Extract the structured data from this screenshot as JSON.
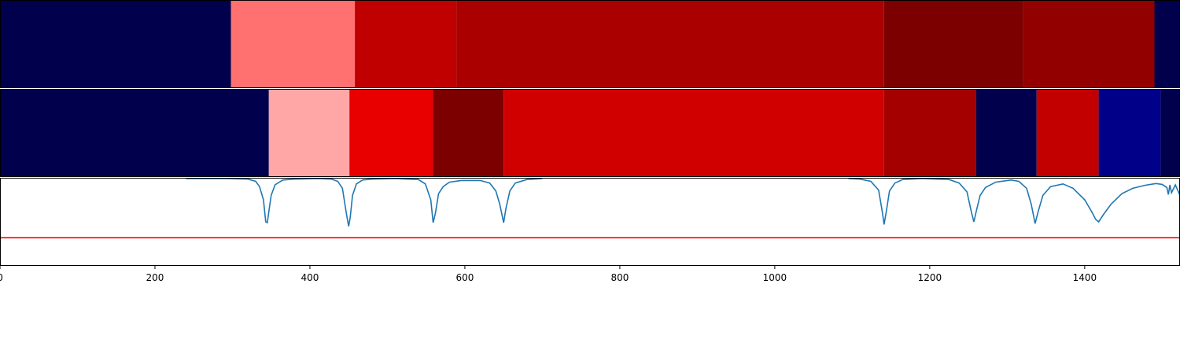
{
  "chart_data": [
    {
      "type": "heatmap",
      "segments": [
        {
          "start": 0,
          "end": 298,
          "color": "#00004c"
        },
        {
          "start": 298,
          "end": 458,
          "color": "#ff7070"
        },
        {
          "start": 458,
          "end": 589,
          "color": "#c00000"
        },
        {
          "start": 589,
          "end": 1141,
          "color": "#aa0000"
        },
        {
          "start": 1141,
          "end": 1320,
          "color": "#7c0000"
        },
        {
          "start": 1320,
          "end": 1490,
          "color": "#930000"
        },
        {
          "start": 1490,
          "end": 1523,
          "color": "#00004c"
        }
      ]
    },
    {
      "type": "heatmap",
      "segments": [
        {
          "start": 0,
          "end": 347,
          "color": "#00004c"
        },
        {
          "start": 347,
          "end": 451,
          "color": "#ffa6a6"
        },
        {
          "start": 451,
          "end": 559,
          "color": "#e80000"
        },
        {
          "start": 559,
          "end": 650,
          "color": "#7c0000"
        },
        {
          "start": 650,
          "end": 1141,
          "color": "#d00000"
        },
        {
          "start": 1141,
          "end": 1260,
          "color": "#a40000"
        },
        {
          "start": 1260,
          "end": 1338,
          "color": "#00004c"
        },
        {
          "start": 1338,
          "end": 1418,
          "color": "#c20000"
        },
        {
          "start": 1418,
          "end": 1498,
          "color": "#000088"
        },
        {
          "start": 1498,
          "end": 1523,
          "color": "#00004c"
        }
      ]
    },
    {
      "type": "line",
      "ylim": [
        0,
        1
      ],
      "series": [
        {
          "color": "#1f77b4",
          "points": [
            [
              240,
              0.99
            ],
            [
              290,
              0.99
            ],
            [
              320,
              0.985
            ],
            [
              330,
              0.96
            ],
            [
              335,
              0.9
            ],
            [
              340,
              0.75
            ],
            [
              343,
              0.5
            ],
            [
              345,
              0.49
            ],
            [
              347,
              0.62
            ],
            [
              350,
              0.8
            ],
            [
              355,
              0.92
            ],
            [
              365,
              0.975
            ],
            [
              380,
              0.985
            ],
            [
              410,
              0.99
            ],
            [
              428,
              0.985
            ],
            [
              436,
              0.96
            ],
            [
              442,
              0.88
            ],
            [
              447,
              0.6
            ],
            [
              450,
              0.45
            ],
            [
              452,
              0.55
            ],
            [
              455,
              0.8
            ],
            [
              460,
              0.93
            ],
            [
              468,
              0.975
            ],
            [
              480,
              0.985
            ],
            [
              510,
              0.99
            ],
            [
              540,
              0.98
            ],
            [
              549,
              0.93
            ],
            [
              556,
              0.75
            ],
            [
              559,
              0.49
            ],
            [
              562,
              0.6
            ],
            [
              566,
              0.82
            ],
            [
              572,
              0.9
            ],
            [
              580,
              0.95
            ],
            [
              595,
              0.97
            ],
            [
              620,
              0.97
            ],
            [
              632,
              0.94
            ],
            [
              640,
              0.85
            ],
            [
              645,
              0.7
            ],
            [
              650,
              0.49
            ],
            [
              653,
              0.65
            ],
            [
              658,
              0.85
            ],
            [
              665,
              0.94
            ],
            [
              680,
              0.98
            ],
            [
              700,
              0.99
            ]
          ]
        },
        {
          "color": "#1f77b4",
          "points": [
            [
              1095,
              0.99
            ],
            [
              1110,
              0.985
            ],
            [
              1124,
              0.96
            ],
            [
              1134,
              0.86
            ],
            [
              1139,
              0.6
            ],
            [
              1141,
              0.47
            ],
            [
              1144,
              0.62
            ],
            [
              1148,
              0.85
            ],
            [
              1155,
              0.94
            ],
            [
              1165,
              0.98
            ],
            [
              1190,
              0.99
            ],
            [
              1225,
              0.98
            ],
            [
              1238,
              0.94
            ],
            [
              1248,
              0.84
            ],
            [
              1254,
              0.6
            ],
            [
              1257,
              0.5
            ],
            [
              1260,
              0.62
            ],
            [
              1265,
              0.8
            ],
            [
              1272,
              0.89
            ],
            [
              1285,
              0.95
            ],
            [
              1305,
              0.975
            ],
            [
              1315,
              0.96
            ],
            [
              1325,
              0.88
            ],
            [
              1331,
              0.7
            ],
            [
              1336,
              0.48
            ],
            [
              1340,
              0.62
            ],
            [
              1346,
              0.8
            ],
            [
              1356,
              0.9
            ],
            [
              1372,
              0.93
            ],
            [
              1385,
              0.88
            ],
            [
              1400,
              0.75
            ],
            [
              1410,
              0.6
            ],
            [
              1414,
              0.53
            ],
            [
              1418,
              0.5
            ],
            [
              1424,
              0.58
            ],
            [
              1434,
              0.7
            ],
            [
              1448,
              0.82
            ],
            [
              1462,
              0.88
            ],
            [
              1478,
              0.915
            ],
            [
              1492,
              0.935
            ],
            [
              1500,
              0.925
            ],
            [
              1506,
              0.89
            ],
            [
              1508,
              0.81
            ],
            [
              1510,
              0.92
            ],
            [
              1512,
              0.83
            ],
            [
              1517,
              0.92
            ],
            [
              1524,
              0.78
            ],
            [
              1529,
              0.6
            ],
            [
              1532,
              0.46
            ],
            [
              1535,
              0.6
            ],
            [
              1540,
              0.85
            ],
            [
              1548,
              0.95
            ],
            [
              1560,
              0.99
            ],
            [
              1585,
              0.99
            ]
          ]
        }
      ],
      "threshold": {
        "y": 0.32,
        "color": "#ff0000"
      }
    }
  ],
  "axis": {
    "xlim": [
      0,
      1523
    ],
    "ticks": [
      "0",
      "200",
      "400",
      "600",
      "800",
      "1000",
      "1200",
      "1400"
    ]
  }
}
